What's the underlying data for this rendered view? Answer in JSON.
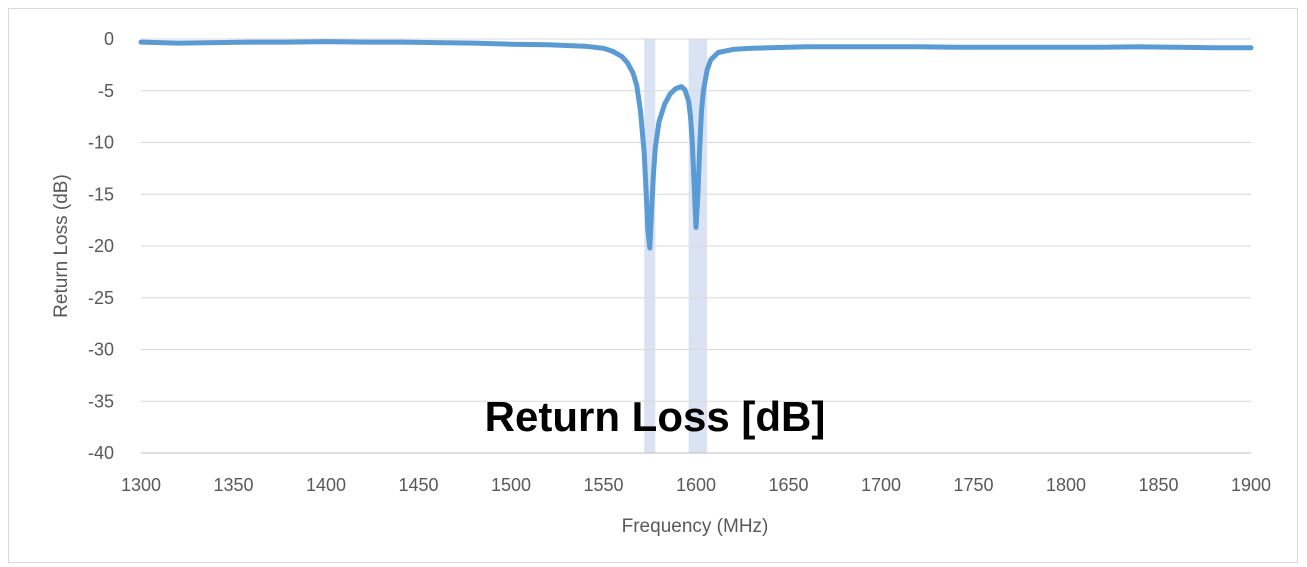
{
  "chart_data": {
    "type": "line",
    "title": "Return Loss [dB]",
    "xlabel": "Frequency (MHz)",
    "ylabel": "Return Loss (dB)",
    "xlim": [
      1300,
      1900
    ],
    "ylim": [
      -40,
      0
    ],
    "x_ticks": [
      "1300",
      "1350",
      "1400",
      "1450",
      "1500",
      "1550",
      "1600",
      "1650",
      "1700",
      "1750",
      "1800",
      "1850",
      "1900"
    ],
    "y_ticks": [
      "0",
      "-5",
      "-10",
      "-15",
      "-20",
      "-25",
      "-30",
      "-35",
      "-40"
    ],
    "grid": true,
    "legend": "none",
    "series_color": "#5b9bd5",
    "band_color": "#dae3f3",
    "highlight_bands": [
      {
        "from": 1572,
        "to": 1578
      },
      {
        "from": 1596,
        "to": 1606
      }
    ],
    "series": [
      {
        "x": [
          1300,
          1320,
          1340,
          1360,
          1380,
          1400,
          1420,
          1440,
          1460,
          1480,
          1500,
          1520,
          1540,
          1550,
          1555,
          1560,
          1563,
          1566,
          1568,
          1570,
          1572,
          1573,
          1574,
          1575,
          1576,
          1577,
          1578,
          1580,
          1583,
          1586,
          1589,
          1592,
          1594,
          1596,
          1597,
          1598,
          1599,
          1600,
          1601,
          1602,
          1603,
          1604,
          1606,
          1608,
          1612,
          1620,
          1630,
          1640,
          1650,
          1660,
          1680,
          1700,
          1720,
          1740,
          1760,
          1780,
          1800,
          1820,
          1840,
          1860,
          1880,
          1900
        ],
        "y": [
          -0.3,
          -0.4,
          -0.35,
          -0.3,
          -0.3,
          -0.25,
          -0.3,
          -0.3,
          -0.35,
          -0.4,
          -0.5,
          -0.55,
          -0.7,
          -0.9,
          -1.2,
          -1.7,
          -2.3,
          -3.3,
          -4.5,
          -7.0,
          -11.0,
          -14.5,
          -18.5,
          -20.2,
          -16.5,
          -13.0,
          -10.5,
          -8.0,
          -6.3,
          -5.3,
          -4.8,
          -4.6,
          -4.9,
          -6.0,
          -7.5,
          -10.0,
          -14.0,
          -18.2,
          -15.0,
          -10.5,
          -7.0,
          -5.0,
          -3.0,
          -2.0,
          -1.3,
          -1.0,
          -0.9,
          -0.85,
          -0.8,
          -0.75,
          -0.75,
          -0.75,
          -0.75,
          -0.8,
          -0.8,
          -0.8,
          -0.8,
          -0.8,
          -0.75,
          -0.8,
          -0.85,
          -0.85
        ]
      }
    ]
  }
}
